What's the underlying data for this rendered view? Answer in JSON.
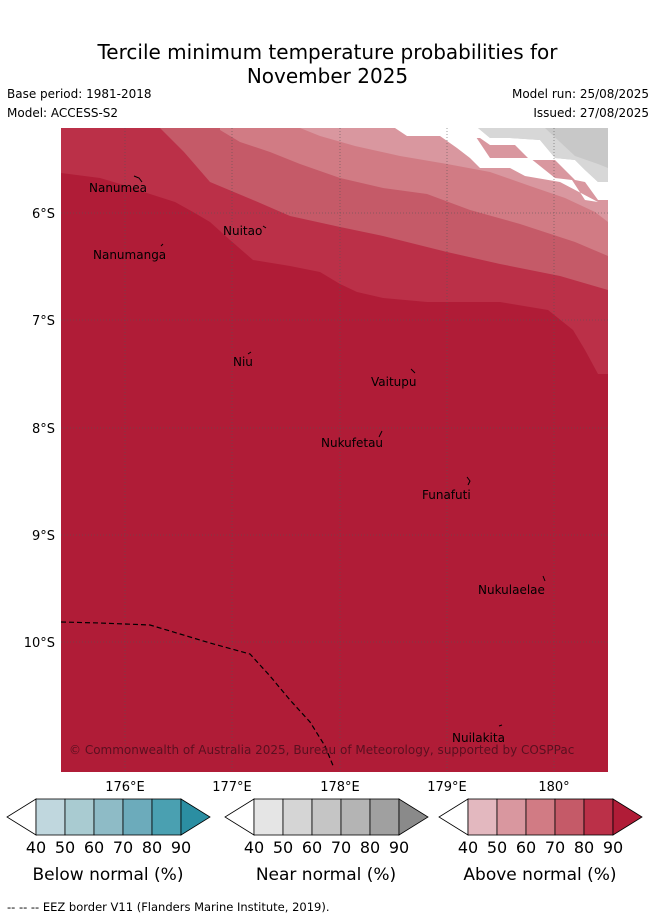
{
  "header": {
    "title_line1": "Tercile minimum temperature probabilities for",
    "title_line2": "November 2025",
    "base_period": "Base period: 1981-2018",
    "model": "Model: ACCESS-S2",
    "model_run": "Model run: 25/08/2025",
    "issued": "Issued: 27/08/2025"
  },
  "map": {
    "lon_labels": [
      "176°E",
      "177°E",
      "178°E",
      "179°E",
      "180°"
    ],
    "lat_labels": [
      "6°S",
      "7°S",
      "8°S",
      "9°S",
      "10°S"
    ],
    "places": [
      "Nanumea",
      "Nanumanga",
      "Nuitao",
      "Niu",
      "Vaitupu",
      "Nukufetau",
      "Funafuti",
      "Nukulaelae",
      "Nuilakita"
    ],
    "copyright": "© Commonwealth of Australia 2025, Bureau of Meteorology, supported by COSPPac",
    "ocean_fill": "#b01c37"
  },
  "colorbars": [
    {
      "title": "Below normal (%)",
      "ticks": [
        "40",
        "50",
        "60",
        "70",
        "80",
        "90"
      ],
      "colors": [
        "#ffffff",
        "#c0d7de",
        "#a9cbd1",
        "#8ebbc6",
        "#6cabbb",
        "#4aa0b1",
        "#2b8ea2"
      ]
    },
    {
      "title": "Near normal (%)",
      "ticks": [
        "40",
        "50",
        "60",
        "70",
        "80",
        "90"
      ],
      "colors": [
        "#ffffff",
        "#e5e5e5",
        "#d5d5d5",
        "#c5c5c5",
        "#b4b4b4",
        "#a0a0a0",
        "#8a8a8a"
      ]
    },
    {
      "title": "Above normal (%)",
      "ticks": [
        "40",
        "50",
        "60",
        "70",
        "80",
        "90"
      ],
      "colors": [
        "#ffffff",
        "#e3b8bf",
        "#d9979f",
        "#d17b84",
        "#c55a68",
        "#bb3048",
        "#b01c37"
      ]
    }
  ],
  "footer": "--  --  -- EEZ border V11 (Flanders Marine Institute, 2019)."
}
